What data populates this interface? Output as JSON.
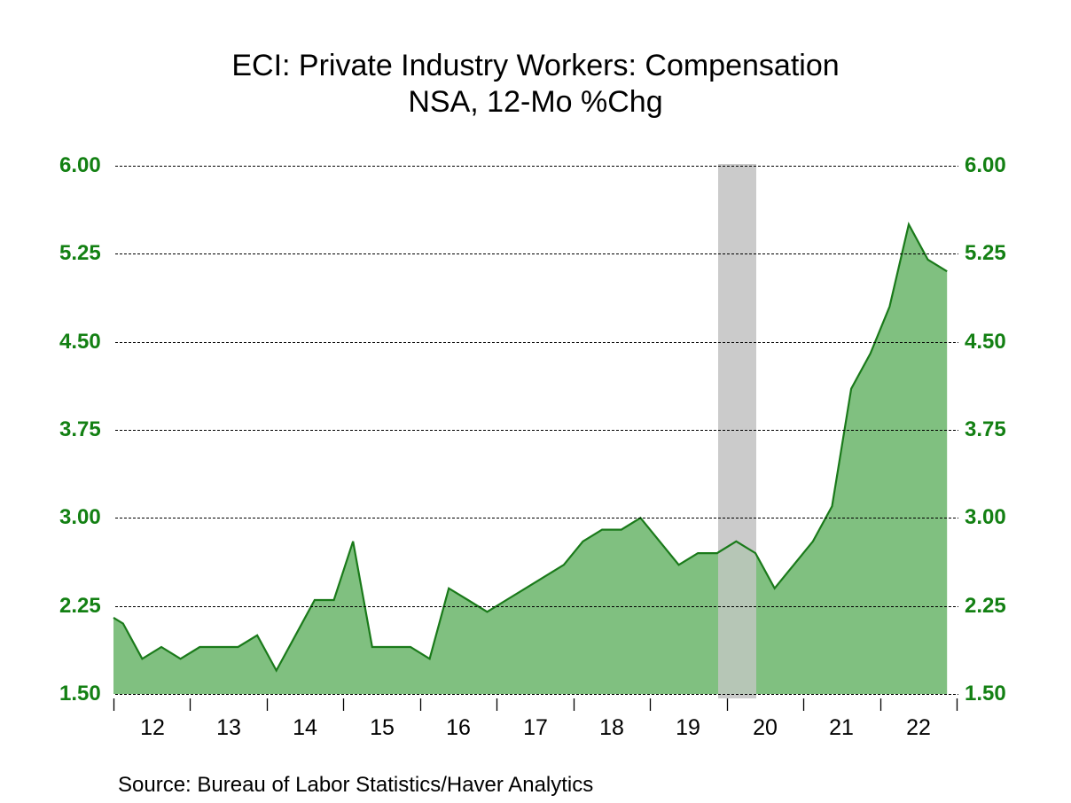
{
  "header": {
    "title": "ECI: Private Industry Workers: Compensation",
    "subtitle": "NSA, 12-Mo %Chg"
  },
  "footer": {
    "source": "Source:  Bureau of Labor Statistics/Haver Analytics"
  },
  "axes": {
    "y_ticks": [
      "6.00",
      "5.25",
      "4.50",
      "3.75",
      "3.00",
      "2.25",
      "1.50"
    ],
    "x_ticks": [
      "12",
      "13",
      "14",
      "15",
      "16",
      "17",
      "18",
      "19",
      "20",
      "21",
      "22"
    ]
  },
  "colors": {
    "fill": "#80c080",
    "line": "#1a7a1a",
    "axis_label": "#138013",
    "recession": "#d3d3d3",
    "grid": "#000000"
  },
  "chart_data": {
    "type": "area",
    "title": "ECI: Private Industry Workers: Compensation",
    "subtitle": "NSA, 12-Mo %Chg",
    "xlabel": "",
    "ylabel": "",
    "ylim": [
      1.5,
      6.0
    ],
    "y_ticks": [
      1.5,
      2.25,
      3.0,
      3.75,
      4.5,
      5.25,
      6.0
    ],
    "x_tick_labels": [
      "12",
      "13",
      "14",
      "15",
      "16",
      "17",
      "18",
      "19",
      "20",
      "21",
      "22"
    ],
    "grid": "horizontal dashed",
    "dual_y_axis": true,
    "recession_shading": {
      "start": "2020-Q1",
      "end": "2020-Q2"
    },
    "left_edge_value": 2.15,
    "source": "Bureau of Labor Statistics/Haver Analytics",
    "x": [
      "2012-Q1",
      "2012-Q2",
      "2012-Q3",
      "2012-Q4",
      "2013-Q1",
      "2013-Q2",
      "2013-Q3",
      "2013-Q4",
      "2014-Q1",
      "2014-Q2",
      "2014-Q3",
      "2014-Q4",
      "2015-Q1",
      "2015-Q2",
      "2015-Q3",
      "2015-Q4",
      "2016-Q1",
      "2016-Q2",
      "2016-Q3",
      "2016-Q4",
      "2017-Q1",
      "2017-Q2",
      "2017-Q3",
      "2017-Q4",
      "2018-Q1",
      "2018-Q2",
      "2018-Q3",
      "2018-Q4",
      "2019-Q1",
      "2019-Q2",
      "2019-Q3",
      "2019-Q4",
      "2020-Q1",
      "2020-Q2",
      "2020-Q3",
      "2020-Q4",
      "2021-Q1",
      "2021-Q2",
      "2021-Q3",
      "2021-Q4",
      "2022-Q1",
      "2022-Q2",
      "2022-Q3",
      "2022-Q4"
    ],
    "series": [
      {
        "name": "ECI Private Industry Compensation, 12-Mo %Chg",
        "values": [
          2.1,
          1.8,
          1.9,
          1.8,
          1.9,
          1.9,
          1.9,
          2.0,
          1.7,
          2.0,
          2.3,
          2.3,
          2.8,
          1.9,
          1.9,
          1.9,
          1.8,
          2.4,
          2.3,
          2.2,
          2.3,
          2.4,
          2.5,
          2.6,
          2.8,
          2.9,
          2.9,
          3.0,
          2.8,
          2.6,
          2.7,
          2.7,
          2.8,
          2.7,
          2.4,
          2.6,
          2.8,
          3.1,
          4.1,
          4.4,
          4.8,
          5.5,
          5.2,
          5.1
        ]
      }
    ]
  }
}
